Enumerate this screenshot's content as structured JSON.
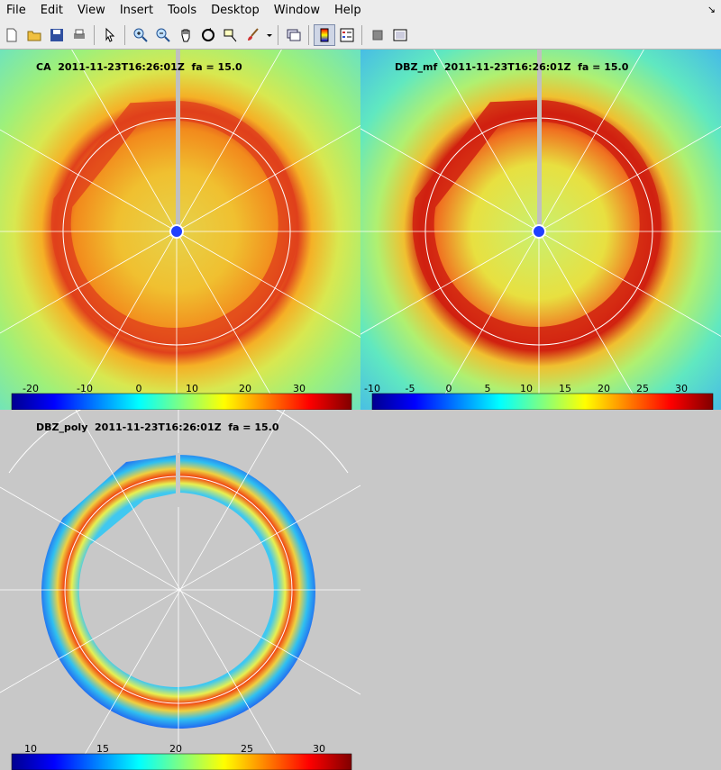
{
  "menu": [
    "File",
    "Edit",
    "View",
    "Insert",
    "Tools",
    "Desktop",
    "Window",
    "Help"
  ],
  "toolbar_icons": [
    "new-file-icon",
    "open-folder-icon",
    "save-icon",
    "print-icon",
    "pointer-icon",
    "zoom-in-icon",
    "zoom-out-icon",
    "pan-hand-icon",
    "rotate-3d-icon",
    "data-cursor-icon",
    "brush-icon",
    "dropdown-arrow-icon",
    "link-plot-icon",
    "colorbar-icon",
    "legend-icon",
    "hide-plot-tools-icon",
    "show-plot-tools-icon"
  ],
  "plots": [
    {
      "id": "ca",
      "title": "CA  2011-11-23T16:26:01Z  fa = 15.0",
      "cbar_ticks": [
        "-20",
        "-10",
        "0",
        "10",
        "20",
        "30"
      ]
    },
    {
      "id": "dbz-mf",
      "title": "DBZ_mf  2011-11-23T16:26:01Z  fa = 15.0",
      "cbar_ticks": [
        "-10",
        "-5",
        "0",
        "5",
        "10",
        "15",
        "20",
        "25",
        "30"
      ]
    },
    {
      "id": "dbz-poly",
      "title": "DBZ_poly  2011-11-23T16:26:01Z  fa = 15.0",
      "cbar_ticks": [
        "10",
        "15",
        "20",
        "25",
        "30"
      ]
    }
  ],
  "colors": {
    "jet": [
      "#00008f",
      "#0000ff",
      "#0080ff",
      "#00ffff",
      "#80ff80",
      "#ffff00",
      "#ff8000",
      "#ff0000",
      "#800000"
    ]
  }
}
